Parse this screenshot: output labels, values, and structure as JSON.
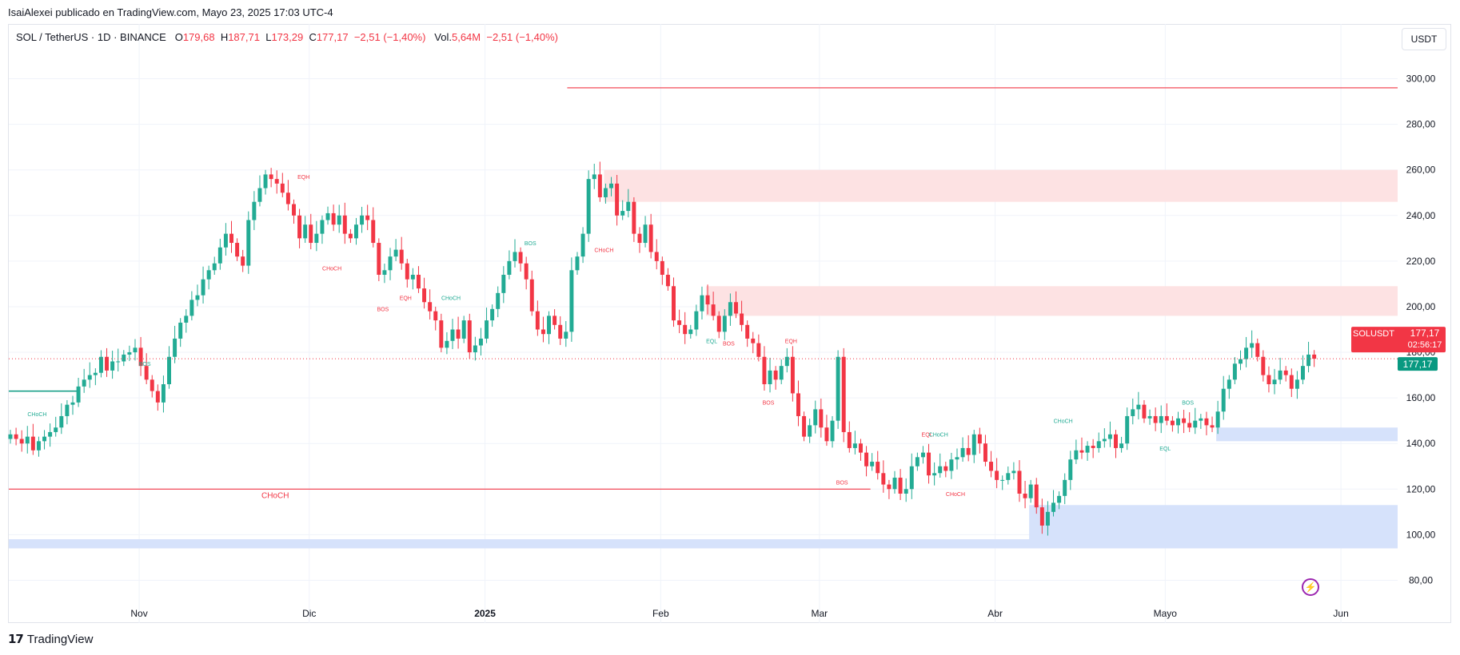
{
  "header": {
    "published": "IsaiAlexei publicado en TradingView.com, Mayo 23, 2025 17:03 UTC-4"
  },
  "legend": {
    "symbol": "SOL / TetherUS · 1D · BINANCE",
    "o_label": "O",
    "o_value": "179,68",
    "h_label": "H",
    "h_value": "187,71",
    "l_label": "L",
    "l_value": "173,29",
    "c_label": "C",
    "c_value": "177,17",
    "change": "−2,51 (−1,40%)",
    "vol_label": "Vol.",
    "vol_value": "5,64M",
    "vol_change": "−2,51 (−1,40%)"
  },
  "currency_button": "USDT",
  "price_labels": {
    "symbol": "SOLUSDT",
    "price": "177,17",
    "countdown": "02:56:17",
    "price2": "177,17"
  },
  "footer": {
    "brand": "TradingView",
    "logo_text": "17"
  },
  "colors": {
    "up": "#22ab94",
    "down": "#f23645",
    "supply_zone": "#fde2e3",
    "demand_zone": "#d6e2fb",
    "grid": "#f0f3fa",
    "text": "#131722"
  },
  "icons": {
    "flash": "lightning-bolt-icon",
    "logo": "tradingview-logo-icon"
  },
  "chart_data": {
    "type": "candlestick",
    "y_axis": {
      "min": 70,
      "max": 310,
      "ticks": [
        "80,00",
        "100,00",
        "120,00",
        "140,00",
        "160,00",
        "180,00",
        "200,00",
        "220,00",
        "240,00",
        "260,00",
        "280,00",
        "300,00"
      ]
    },
    "x_axis": {
      "start": "2024-10-09",
      "end": "2025-06-11",
      "labels": [
        {
          "date": "2024-11-01",
          "text": "Nov"
        },
        {
          "date": "2024-12-01",
          "text": "Dic"
        },
        {
          "date": "2025-01-01",
          "text": "2025"
        },
        {
          "date": "2025-02-01",
          "text": "Feb"
        },
        {
          "date": "2025-03-01",
          "text": "Mar"
        },
        {
          "date": "2025-04-01",
          "text": "Abr"
        },
        {
          "date": "2025-05-01",
          "text": "Mayo"
        },
        {
          "date": "2025-06-01",
          "text": "Jun"
        }
      ]
    },
    "last_price": 177.17,
    "closes": [
      144,
      142,
      140,
      143,
      137,
      141,
      143,
      145,
      147,
      152,
      157,
      158,
      165,
      168,
      170,
      171,
      178,
      172,
      176,
      176,
      179,
      180,
      182,
      174,
      168,
      163,
      158,
      166,
      178,
      186,
      193,
      196,
      203,
      205,
      212,
      216,
      219,
      226,
      232,
      228,
      222,
      218,
      238,
      246,
      252,
      258,
      256,
      254,
      250,
      245,
      240,
      230,
      236,
      228,
      232,
      238,
      241,
      236,
      240,
      232,
      230,
      236,
      240,
      238,
      228,
      214,
      216,
      222,
      225,
      219,
      212,
      214,
      208,
      202,
      198,
      194,
      182,
      185,
      190,
      186,
      194,
      180,
      183,
      186,
      194,
      199,
      206,
      214,
      220,
      224,
      219,
      212,
      198,
      190,
      188,
      196,
      192,
      186,
      189,
      216,
      222,
      232,
      256,
      258,
      248,
      252,
      254,
      240,
      242,
      246,
      232,
      228,
      236,
      224,
      220,
      214,
      209,
      194,
      192,
      188,
      190,
      198,
      205,
      201,
      196,
      189,
      196,
      202,
      197,
      192,
      186,
      184,
      178,
      166,
      172,
      168,
      174,
      178,
      162,
      152,
      143,
      148,
      155,
      147,
      141,
      150,
      178,
      145,
      138,
      140,
      136,
      130,
      132,
      127,
      122,
      120,
      125,
      118,
      120,
      130,
      134,
      136,
      126,
      127,
      130,
      128,
      133,
      134,
      138,
      135,
      144,
      140,
      132,
      128,
      124,
      124,
      127,
      128,
      118,
      116,
      122,
      112,
      104,
      110,
      114,
      117,
      124,
      133,
      137,
      136,
      139,
      138,
      141,
      142,
      144,
      138,
      140,
      152,
      155,
      157,
      151,
      152,
      149,
      152,
      150,
      148,
      151,
      149,
      147,
      150,
      151,
      148,
      147,
      154,
      164,
      168,
      175,
      177,
      182,
      184,
      178,
      170,
      166,
      168,
      172,
      170,
      164,
      168,
      174,
      179,
      177.17
    ],
    "resistance_line": 296,
    "support_line": 120,
    "supply_zones": [
      {
        "from": "2025-01-22",
        "top": 260,
        "bottom": 246
      },
      {
        "from": "2025-02-09",
        "top": 209,
        "bottom": 196
      }
    ],
    "demand_zones": [
      {
        "from": "2025-05-10",
        "top": 147,
        "bottom": 141
      },
      {
        "from": "2025-04-07",
        "top": 113,
        "bottom": 95
      },
      {
        "from": "2024-10-09",
        "top": 98,
        "bottom": 94
      }
    ],
    "annotations": [
      {
        "text": "CHoCH",
        "date": "2024-10-14",
        "price": 152,
        "color": "up"
      },
      {
        "text": "BOS",
        "date": "2024-11-02",
        "price": 174,
        "color": "up"
      },
      {
        "text": "EQH",
        "date": "2024-11-30",
        "price": 256,
        "color": "down"
      },
      {
        "text": "CHoCH",
        "date": "2024-12-05",
        "price": 216,
        "color": "down"
      },
      {
        "text": "BOS",
        "date": "2024-12-14",
        "price": 198,
        "color": "down"
      },
      {
        "text": "EQH",
        "date": "2024-12-18",
        "price": 203,
        "color": "down"
      },
      {
        "text": "CHoCH",
        "date": "2024-12-26",
        "price": 203,
        "color": "up"
      },
      {
        "text": "BOS",
        "date": "2025-01-09",
        "price": 227,
        "color": "up"
      },
      {
        "text": "CHoCH",
        "date": "2025-01-22",
        "price": 224,
        "color": "down"
      },
      {
        "text": "EQL",
        "date": "2025-02-10",
        "price": 184,
        "color": "up"
      },
      {
        "text": "BOS",
        "date": "2025-02-13",
        "price": 183,
        "color": "down"
      },
      {
        "text": "EQH",
        "date": "2025-02-24",
        "price": 184,
        "color": "down"
      },
      {
        "text": "BOS",
        "date": "2025-02-20",
        "price": 157,
        "color": "down"
      },
      {
        "text": "CHoCH",
        "date": "2024-11-25",
        "price": 116,
        "color": "down"
      },
      {
        "text": "BOS",
        "date": "2025-03-05",
        "price": 122,
        "color": "down"
      },
      {
        "text": "EQL",
        "date": "2025-03-20",
        "price": 143,
        "color": "down"
      },
      {
        "text": "CHoCH",
        "date": "2025-03-22",
        "price": 143,
        "color": "up"
      },
      {
        "text": "CHoCH",
        "date": "2025-03-25",
        "price": 117,
        "color": "down"
      },
      {
        "text": "CHoCH",
        "date": "2025-04-13",
        "price": 149,
        "color": "up"
      },
      {
        "text": "BOS",
        "date": "2025-05-05",
        "price": 157,
        "color": "up"
      },
      {
        "text": "EQL",
        "date": "2025-05-01",
        "price": 137,
        "color": "up"
      }
    ]
  }
}
